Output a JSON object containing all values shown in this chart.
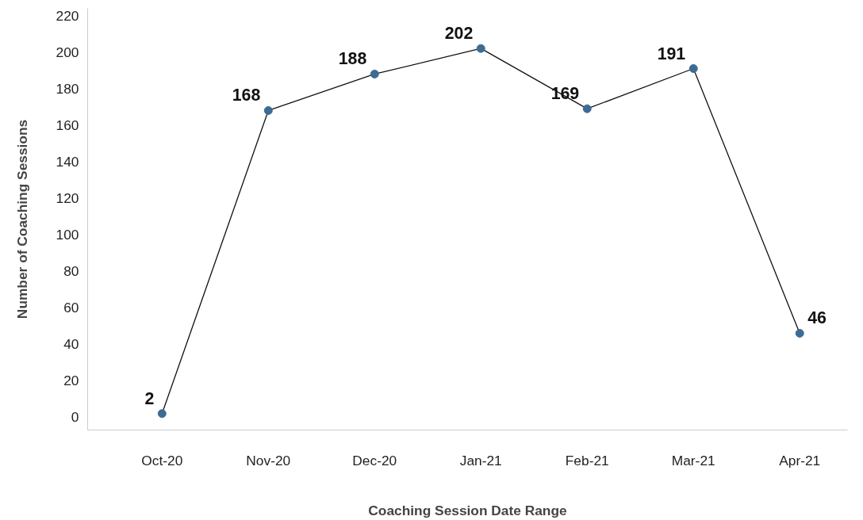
{
  "chart_data": {
    "type": "line",
    "xlabel": "Coaching Session Date Range",
    "ylabel": "Number of Coaching Sessions",
    "categories": [
      "Oct-20",
      "Nov-20",
      "Dec-20",
      "Jan-21",
      "Feb-21",
      "Mar-21",
      "Apr-21"
    ],
    "series": [
      {
        "color": "#3d6b94",
        "values": [
          2,
          168,
          188,
          202,
          169,
          191,
          46
        ]
      }
    ],
    "ylim": [
      -7,
      224
    ],
    "yticks": [
      0,
      20,
      40,
      60,
      80,
      100,
      120,
      140,
      160,
      180,
      200,
      220
    ],
    "data_labels": true,
    "marker": "circle",
    "grid": false,
    "line_style": "solid"
  }
}
